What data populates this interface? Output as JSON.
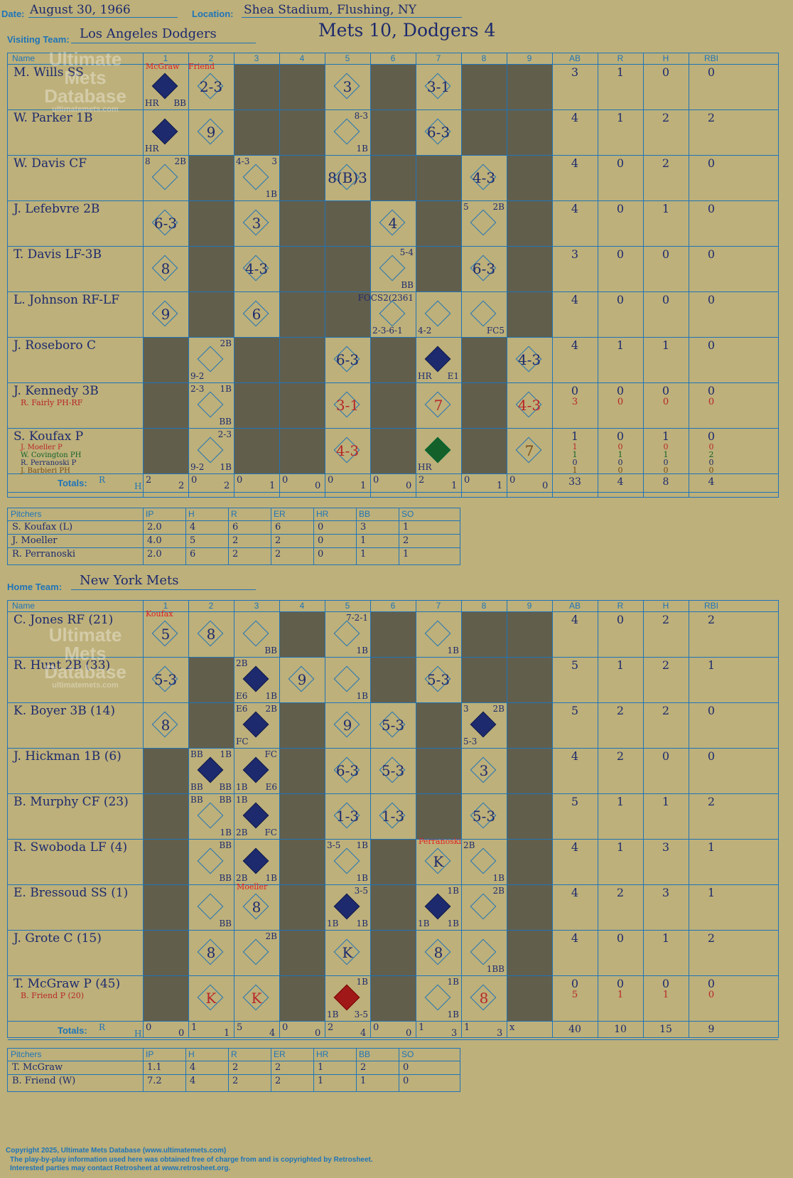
{
  "header": {
    "date_label": "Date:",
    "date": "August 30, 1966",
    "location_label": "Location:",
    "location": "Shea Stadium, Flushing, NY",
    "visiting_label": "Visiting Team:",
    "visiting_team": "Los Angeles Dodgers",
    "home_label": "Home Team:",
    "home_team": "New York Mets",
    "result": "Mets 10, Dodgers 4"
  },
  "columns": {
    "name": "Name",
    "innings": [
      "1",
      "2",
      "3",
      "4",
      "5",
      "6",
      "7",
      "8",
      "9"
    ],
    "stats": [
      "AB",
      "R",
      "H",
      "RBI"
    ],
    "totals_label": "Totals:",
    "r_label": "R",
    "h_label": "H"
  },
  "watermark": {
    "line1": "Ultimate",
    "line2": "Mets",
    "line3": "Database",
    "url": "ultimatemets.com"
  },
  "visitors": {
    "players": [
      {
        "name": "M. Wills SS",
        "stats": [
          "3",
          "1",
          "0",
          "0"
        ]
      },
      {
        "name": "W. Parker 1B",
        "stats": [
          "4",
          "1",
          "2",
          "2"
        ]
      },
      {
        "name": "W. Davis CF",
        "stats": [
          "4",
          "0",
          "2",
          "0"
        ]
      },
      {
        "name": "J. Lefebvre 2B",
        "stats": [
          "4",
          "0",
          "1",
          "0"
        ]
      },
      {
        "name": "T. Davis LF-3B",
        "stats": [
          "3",
          "0",
          "0",
          "0"
        ]
      },
      {
        "name": "L. Johnson RF-LF",
        "stats": [
          "4",
          "0",
          "0",
          "0"
        ]
      },
      {
        "name": "J. Roseboro C",
        "stats": [
          "4",
          "1",
          "1",
          "0"
        ]
      },
      {
        "name": "J. Kennedy 3B",
        "stats": [
          "0",
          "0",
          "0",
          "0"
        ],
        "subs": [
          {
            "name": "R. Fairly PH-RF",
            "color": "#b8262a",
            "stats": [
              "3",
              "0",
              "0",
              "0"
            ]
          }
        ]
      },
      {
        "name": "S. Koufax P",
        "stats": [
          "1",
          "0",
          "1",
          "0"
        ],
        "subs": [
          {
            "name": "J. Moeller P",
            "color": "#b8262a",
            "stats": [
              "1",
              "0",
              "0",
              "0"
            ]
          },
          {
            "name": "W. Covington PH",
            "color": "#13602a",
            "stats": [
              "1",
              "1",
              "1",
              "2"
            ]
          },
          {
            "name": "R. Perranoski P",
            "color": "#1d2a6e",
            "stats": [
              "0",
              "0",
              "0",
              "0"
            ]
          },
          {
            "name": "J. Barbieri PH",
            "color": "#7a4a14",
            "stats": [
              "1",
              "0",
              "0",
              "0"
            ]
          }
        ]
      }
    ],
    "totals_innings": [
      [
        "2",
        "2"
      ],
      [
        "0",
        "2"
      ],
      [
        "0",
        "1"
      ],
      [
        "0",
        "0"
      ],
      [
        "0",
        "1"
      ],
      [
        "0",
        "0"
      ],
      [
        "2",
        "1"
      ],
      [
        "0",
        "1"
      ],
      [
        "0",
        "0"
      ]
    ],
    "totals_stats": [
      "33",
      "4",
      "8",
      "4"
    ],
    "pitchers_header": [
      "Pitchers",
      "IP",
      "H",
      "R",
      "ER",
      "HR",
      "BB",
      "SO"
    ],
    "pitchers": [
      [
        "S. Koufax (L)",
        "2.0",
        "4",
        "6",
        "6",
        "0",
        "3",
        "1"
      ],
      [
        "J. Moeller",
        "4.0",
        "5",
        "2",
        "2",
        "0",
        "1",
        "2"
      ],
      [
        "R. Perranoski",
        "2.0",
        "6",
        "2",
        "2",
        "0",
        "1",
        "1"
      ]
    ],
    "notes": [
      {
        "text": "McGraw",
        "color": "#e02020"
      },
      {
        "text": "Friend",
        "color": "#e02020"
      }
    ],
    "plays": [
      {
        "r": 0,
        "c": 0,
        "fill": "filled",
        "small": [
          [
            "HR",
            "bl"
          ],
          [
            "BB",
            "br"
          ]
        ]
      },
      {
        "r": 0,
        "c": 1,
        "text": "2-3"
      },
      {
        "r": 0,
        "c": 4,
        "text": "3"
      },
      {
        "r": 0,
        "c": 6,
        "text": "3-1"
      },
      {
        "r": 1,
        "c": 0,
        "fill": "filled",
        "small": [
          [
            "HR",
            "bl"
          ]
        ]
      },
      {
        "r": 1,
        "c": 1,
        "text": "9"
      },
      {
        "r": 1,
        "c": 4,
        "small": [
          [
            "8-3",
            "tr"
          ],
          [
            "1B",
            "br"
          ]
        ]
      },
      {
        "r": 1,
        "c": 6,
        "text": "6-3"
      },
      {
        "r": 2,
        "c": 0,
        "small": [
          [
            "8",
            "tl"
          ],
          [
            "2B",
            "tr"
          ]
        ]
      },
      {
        "r": 2,
        "c": 2,
        "small": [
          [
            "4-3",
            "tl"
          ],
          [
            "3",
            "tr"
          ],
          [
            "1B",
            "br"
          ]
        ]
      },
      {
        "r": 2,
        "c": 4,
        "text": "8(B)3"
      },
      {
        "r": 2,
        "c": 7,
        "text": "4-3"
      },
      {
        "r": 3,
        "c": 0,
        "text": "6-3"
      },
      {
        "r": 3,
        "c": 2,
        "text": "3"
      },
      {
        "r": 3,
        "c": 5,
        "text": "4"
      },
      {
        "r": 3,
        "c": 7,
        "small": [
          [
            "5",
            "tl"
          ],
          [
            "2B",
            "tr"
          ]
        ]
      },
      {
        "r": 4,
        "c": 0,
        "text": "8"
      },
      {
        "r": 4,
        "c": 2,
        "text": "4-3"
      },
      {
        "r": 4,
        "c": 5,
        "small": [
          [
            "5-4",
            "tr"
          ],
          [
            "BB",
            "br"
          ]
        ]
      },
      {
        "r": 4,
        "c": 7,
        "text": "6-3"
      },
      {
        "r": 5,
        "c": 0,
        "text": "9"
      },
      {
        "r": 5,
        "c": 2,
        "text": "6"
      },
      {
        "r": 5,
        "c": 5,
        "small": [
          [
            "FOCS2(2361",
            "tr"
          ],
          [
            "2-3-6-1",
            "bl"
          ]
        ]
      },
      {
        "r": 5,
        "c": 6,
        "small": [
          [
            "4-2",
            "bl"
          ]
        ]
      },
      {
        "r": 5,
        "c": 7,
        "small": [
          [
            "FC5",
            "br"
          ]
        ]
      },
      {
        "r": 6,
        "c": 1,
        "small": [
          [
            "2B",
            "tr"
          ],
          [
            "9-2",
            "bl"
          ]
        ]
      },
      {
        "r": 6,
        "c": 4,
        "text": "6-3"
      },
      {
        "r": 6,
        "c": 6,
        "fill": "filled",
        "small": [
          [
            "HR",
            "bl"
          ],
          [
            "E1",
            "br"
          ]
        ]
      },
      {
        "r": 6,
        "c": 8,
        "text": "4-3"
      },
      {
        "r": 7,
        "c": 1,
        "small": [
          [
            "2-3",
            "tl"
          ],
          [
            "1B",
            "tr"
          ],
          [
            "BB",
            "br"
          ]
        ]
      },
      {
        "r": 7,
        "c": 4,
        "text": "3-1",
        "cls": "red"
      },
      {
        "r": 7,
        "c": 6,
        "text": "7",
        "cls": "red"
      },
      {
        "r": 7,
        "c": 8,
        "text": "4-3",
        "cls": "red"
      },
      {
        "r": 8,
        "c": 1,
        "small": [
          [
            "2-3",
            "tr"
          ],
          [
            "9-2",
            "bl"
          ],
          [
            "1B",
            "br"
          ]
        ]
      },
      {
        "r": 8,
        "c": 4,
        "text": "4-3",
        "cls": "red"
      },
      {
        "r": 8,
        "c": 6,
        "fill": "green",
        "small": [
          [
            "HR",
            "bl"
          ]
        ]
      },
      {
        "r": 8,
        "c": 8,
        "text": "7",
        "cls": "brown"
      }
    ]
  },
  "home": {
    "players": [
      {
        "name": "C. Jones RF (21)",
        "stats": [
          "4",
          "0",
          "2",
          "2"
        ]
      },
      {
        "name": "R. Hunt 2B (33)",
        "stats": [
          "5",
          "1",
          "2",
          "1"
        ]
      },
      {
        "name": "K. Boyer 3B (14)",
        "stats": [
          "5",
          "2",
          "2",
          "0"
        ]
      },
      {
        "name": "J. Hickman 1B (6)",
        "stats": [
          "4",
          "2",
          "0",
          "0"
        ]
      },
      {
        "name": "B. Murphy CF (23)",
        "stats": [
          "5",
          "1",
          "1",
          "2"
        ]
      },
      {
        "name": "R. Swoboda LF (4)",
        "stats": [
          "4",
          "1",
          "3",
          "1"
        ]
      },
      {
        "name": "E. Bressoud SS (1)",
        "stats": [
          "4",
          "2",
          "3",
          "1"
        ]
      },
      {
        "name": "J. Grote C (15)",
        "stats": [
          "4",
          "0",
          "1",
          "2"
        ]
      },
      {
        "name": "T. McGraw P (45)",
        "stats": [
          "0",
          "0",
          "0",
          "0"
        ],
        "subs": [
          {
            "name": "B. Friend P (20)",
            "color": "#b8262a",
            "stats": [
              "5",
              "1",
              "1",
              "0"
            ]
          }
        ]
      }
    ],
    "totals_innings": [
      [
        "0",
        "0"
      ],
      [
        "1",
        "1"
      ],
      [
        "5",
        "4"
      ],
      [
        "0",
        "0"
      ],
      [
        "2",
        "4"
      ],
      [
        "0",
        "0"
      ],
      [
        "1",
        "3"
      ],
      [
        "1",
        "3"
      ],
      [
        "x",
        ""
      ]
    ],
    "totals_stats": [
      "40",
      "10",
      "15",
      "9"
    ],
    "pitchers_header": [
      "Pitchers",
      "IP",
      "H",
      "R",
      "ER",
      "HR",
      "BB",
      "SO"
    ],
    "pitchers": [
      [
        "T. McGraw",
        "1.1",
        "4",
        "2",
        "2",
        "1",
        "2",
        "0"
      ],
      [
        "B. Friend (W)",
        "7.2",
        "4",
        "2",
        "2",
        "1",
        "1",
        "0"
      ]
    ],
    "notes": [
      {
        "text": "Koufax",
        "color": "#e02020"
      },
      {
        "text": "Moeller",
        "color": "#e02020"
      },
      {
        "text": "Perranoski",
        "color": "#e02020"
      }
    ],
    "plays": [
      {
        "r": 0,
        "c": 0,
        "text": "5"
      },
      {
        "r": 0,
        "c": 1,
        "text": "8"
      },
      {
        "r": 0,
        "c": 2,
        "small": [
          [
            "BB",
            "br"
          ]
        ]
      },
      {
        "r": 0,
        "c": 4,
        "small": [
          [
            "7-2-1",
            "tr"
          ],
          [
            "1B",
            "br"
          ]
        ]
      },
      {
        "r": 0,
        "c": 6,
        "small": [
          [
            "1B",
            "br"
          ]
        ]
      },
      {
        "r": 1,
        "c": 0,
        "text": "5-3"
      },
      {
        "r": 1,
        "c": 2,
        "fill": "filled",
        "small": [
          [
            "2B",
            "tl"
          ],
          [
            "E6",
            "bl"
          ],
          [
            "1B",
            "br"
          ]
        ]
      },
      {
        "r": 1,
        "c": 3,
        "text": "9"
      },
      {
        "r": 1,
        "c": 4,
        "small": [
          [
            "1B",
            "br"
          ]
        ]
      },
      {
        "r": 1,
        "c": 6,
        "text": "5-3"
      },
      {
        "r": 2,
        "c": 0,
        "text": "8"
      },
      {
        "r": 2,
        "c": 2,
        "fill": "filled",
        "small": [
          [
            "E6",
            "tl"
          ],
          [
            "2B",
            "tr"
          ],
          [
            "FC",
            "bl"
          ]
        ]
      },
      {
        "r": 2,
        "c": 4,
        "text": "9"
      },
      {
        "r": 2,
        "c": 5,
        "text": "5-3"
      },
      {
        "r": 2,
        "c": 7,
        "fill": "filled",
        "small": [
          [
            "3",
            "tl"
          ],
          [
            "2B",
            "tr"
          ],
          [
            "5-3",
            "bl"
          ]
        ]
      },
      {
        "r": 3,
        "c": 1,
        "fill": "filled",
        "small": [
          [
            "BB",
            "tl"
          ],
          [
            "1B",
            "tr"
          ],
          [
            "BB",
            "bl"
          ],
          [
            "BB",
            "br"
          ]
        ]
      },
      {
        "r": 3,
        "c": 2,
        "fill": "filled",
        "small": [
          [
            "FC",
            "tr"
          ],
          [
            "1B",
            "bl"
          ],
          [
            "E6",
            "br"
          ]
        ]
      },
      {
        "r": 3,
        "c": 4,
        "text": "6-3"
      },
      {
        "r": 3,
        "c": 5,
        "text": "5-3"
      },
      {
        "r": 3,
        "c": 7,
        "text": "3"
      },
      {
        "r": 4,
        "c": 1,
        "small": [
          [
            "BB",
            "tl"
          ],
          [
            "BB",
            "tr"
          ],
          [
            "1B",
            "br"
          ]
        ]
      },
      {
        "r": 4,
        "c": 2,
        "fill": "filled",
        "small": [
          [
            "1B",
            "tl"
          ],
          [
            "2B",
            "bl"
          ],
          [
            "FC",
            "br"
          ]
        ]
      },
      {
        "r": 4,
        "c": 4,
        "text": "1-3"
      },
      {
        "r": 4,
        "c": 5,
        "text": "1-3"
      },
      {
        "r": 4,
        "c": 7,
        "text": "5-3"
      },
      {
        "r": 5,
        "c": 1,
        "small": [
          [
            "BB",
            "tr"
          ],
          [
            "BB",
            "br"
          ]
        ]
      },
      {
        "r": 5,
        "c": 2,
        "fill": "filled",
        "small": [
          [
            "2B",
            "bl"
          ],
          [
            "1B",
            "br"
          ]
        ]
      },
      {
        "r": 5,
        "c": 4,
        "small": [
          [
            "3-5",
            "tl"
          ],
          [
            "1B",
            "tr"
          ],
          [
            "1B",
            "br"
          ]
        ]
      },
      {
        "r": 5,
        "c": 6,
        "text": "K"
      },
      {
        "r": 5,
        "c": 7,
        "small": [
          [
            "2B",
            "tl"
          ],
          [
            "1B",
            "br"
          ]
        ]
      },
      {
        "r": 6,
        "c": 1,
        "small": [
          [
            "BB",
            "br"
          ]
        ]
      },
      {
        "r": 6,
        "c": 2,
        "text": "8"
      },
      {
        "r": 6,
        "c": 4,
        "fill": "filled",
        "small": [
          [
            "3-5",
            "tr"
          ],
          [
            "1B",
            "bl"
          ],
          [
            "1B",
            "br"
          ]
        ]
      },
      {
        "r": 6,
        "c": 6,
        "fill": "filled",
        "small": [
          [
            "1B",
            "tr"
          ],
          [
            "1B",
            "bl"
          ],
          [
            "1B",
            "br"
          ]
        ]
      },
      {
        "r": 6,
        "c": 7,
        "small": [
          [
            "2B",
            "tr"
          ]
        ]
      },
      {
        "r": 7,
        "c": 1,
        "text": "8"
      },
      {
        "r": 7,
        "c": 2,
        "small": [
          [
            "2B",
            "tr"
          ]
        ]
      },
      {
        "r": 7,
        "c": 4,
        "text": "K"
      },
      {
        "r": 7,
        "c": 6,
        "text": "8"
      },
      {
        "r": 7,
        "c": 7,
        "small": [
          [
            "1BB",
            "br"
          ]
        ]
      },
      {
        "r": 8,
        "c": 1,
        "text": "K",
        "cls": "red"
      },
      {
        "r": 8,
        "c": 2,
        "text": "K",
        "cls": "red"
      },
      {
        "r": 8,
        "c": 4,
        "fill": "red",
        "small": [
          [
            "1B",
            "tr"
          ],
          [
            "1B",
            "bl"
          ],
          [
            "3-5",
            "br"
          ]
        ]
      },
      {
        "r": 8,
        "c": 6,
        "small": [
          [
            "1B",
            "tr"
          ],
          [
            "1B",
            "br"
          ]
        ]
      },
      {
        "r": 8,
        "c": 7,
        "text": "8",
        "cls": "red"
      }
    ]
  },
  "footer": {
    "line1": "Copyright 2025, Ultimate Mets Database (www.ultimatemets.com)",
    "line2": "The play-by-play information used here was obtained free of charge from and is copyrighted by Retrosheet.",
    "line3": "Interested parties may contact Retrosheet at www.retrosheet.org."
  }
}
